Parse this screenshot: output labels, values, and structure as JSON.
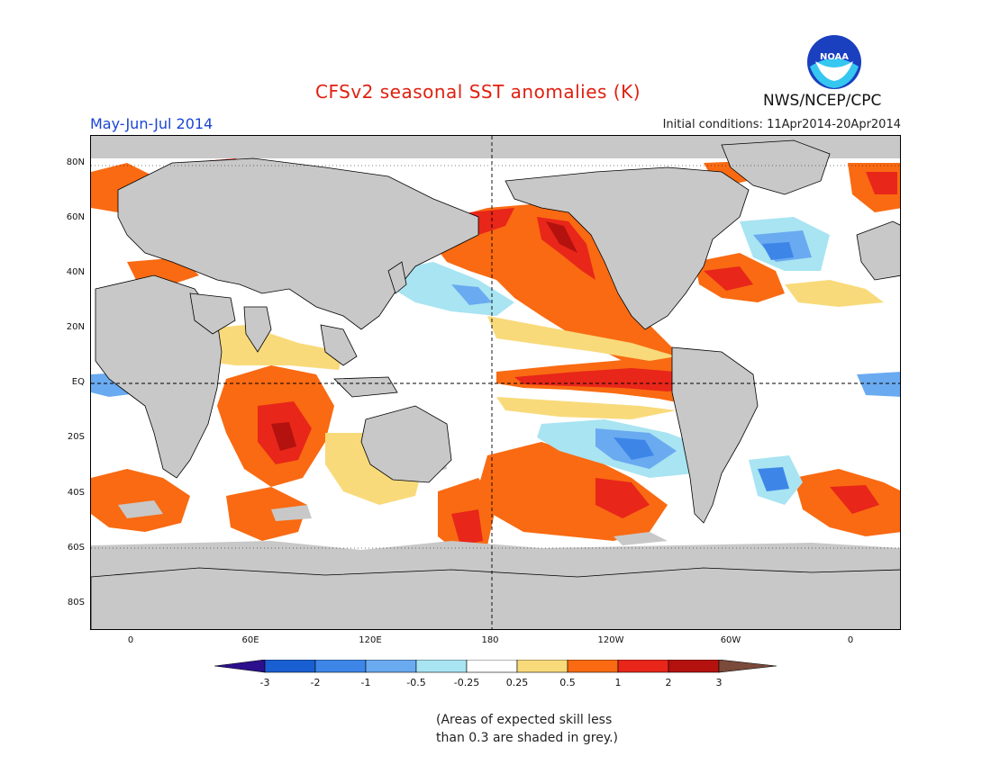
{
  "header": {
    "title": "CFSv2 seasonal SST anomalies (K)",
    "season": "May-Jun-Jul 2014",
    "initial_conditions": "Initial conditions: 11Apr2014-20Apr2014",
    "organization": "NWS/NCEP/CPC",
    "logo_text": "NOAA"
  },
  "map": {
    "lat_labels": [
      "80N",
      "60N",
      "40N",
      "20N",
      "EQ",
      "20S",
      "40S",
      "60S",
      "80S"
    ],
    "lon_labels": [
      "0",
      "60E",
      "120E",
      "180",
      "120W",
      "60W",
      "0"
    ],
    "colors": {
      "land": "#c8c8c8",
      "low_skill_grey": "#c8c8c8",
      "ocean_neutral": "#ffffff",
      "coastline": "#000000"
    }
  },
  "colorbar": {
    "labels": [
      "-3",
      "-2",
      "-1",
      "-0.5",
      "-0.25",
      "0.25",
      "0.5",
      "1",
      "2",
      "3"
    ],
    "colors": [
      "#2c0f8c",
      "#1a5fd1",
      "#3d86e8",
      "#6aaaf0",
      "#a8e4f2",
      "#ffffff",
      "#f9da7a",
      "#f96a12",
      "#e8261a",
      "#b3120f",
      "#7a4a3a"
    ]
  },
  "note": {
    "line1": "(Areas of expected skill less",
    "line2": "than 0.3 are shaded in grey.)"
  }
}
